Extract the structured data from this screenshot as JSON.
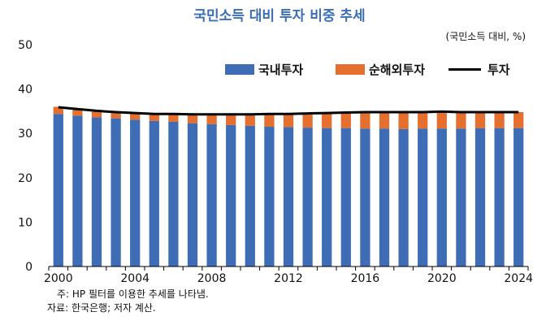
{
  "chart_data": {
    "type": "bar",
    "title": "국민소득 대비 투자 비중 추세",
    "unit_label": "(국민소득 대비, %)",
    "x": [
      2000,
      2001,
      2002,
      2003,
      2004,
      2005,
      2006,
      2007,
      2008,
      2009,
      2010,
      2011,
      2012,
      2013,
      2014,
      2015,
      2016,
      2017,
      2018,
      2019,
      2020,
      2021,
      2022,
      2023,
      2024
    ],
    "x_tick_labels": [
      "2000",
      "2004",
      "2008",
      "2012",
      "2016",
      "2020",
      "2024"
    ],
    "y_tick_labels": [
      "0",
      "10",
      "20",
      "30",
      "40",
      "50"
    ],
    "ylim": [
      0,
      50
    ],
    "series": [
      {
        "name": "국내투자",
        "kind": "bar-stacked",
        "color": "#3e6db5",
        "values": [
          34.4,
          34.0,
          33.6,
          33.4,
          33.1,
          32.8,
          32.6,
          32.3,
          32.1,
          31.9,
          31.7,
          31.5,
          31.4,
          31.3,
          31.2,
          31.2,
          31.1,
          31.1,
          31.0,
          31.1,
          31.1,
          31.1,
          31.2,
          31.2,
          31.2
        ]
      },
      {
        "name": "순해외투자",
        "kind": "bar-stacked",
        "color": "#e46f2e",
        "values": [
          1.6,
          1.6,
          1.6,
          1.5,
          1.6,
          1.7,
          1.8,
          2.0,
          2.2,
          2.4,
          2.6,
          2.9,
          3.1,
          3.3,
          3.5,
          3.6,
          3.7,
          3.8,
          3.8,
          3.8,
          3.8,
          3.7,
          3.6,
          3.6,
          3.6
        ]
      },
      {
        "name": "투자",
        "kind": "line",
        "color": "#000000",
        "values": [
          35.9,
          35.5,
          35.1,
          34.8,
          34.6,
          34.4,
          34.4,
          34.3,
          34.3,
          34.3,
          34.3,
          34.4,
          34.4,
          34.5,
          34.6,
          34.7,
          34.8,
          34.8,
          34.8,
          34.8,
          34.9,
          34.8,
          34.8,
          34.8,
          34.8
        ]
      }
    ]
  },
  "notes": {
    "line1": "주: HP 필터를 이용한 추세를 나타냄.",
    "line2": "자료: 한국은행; 저자 계산."
  }
}
